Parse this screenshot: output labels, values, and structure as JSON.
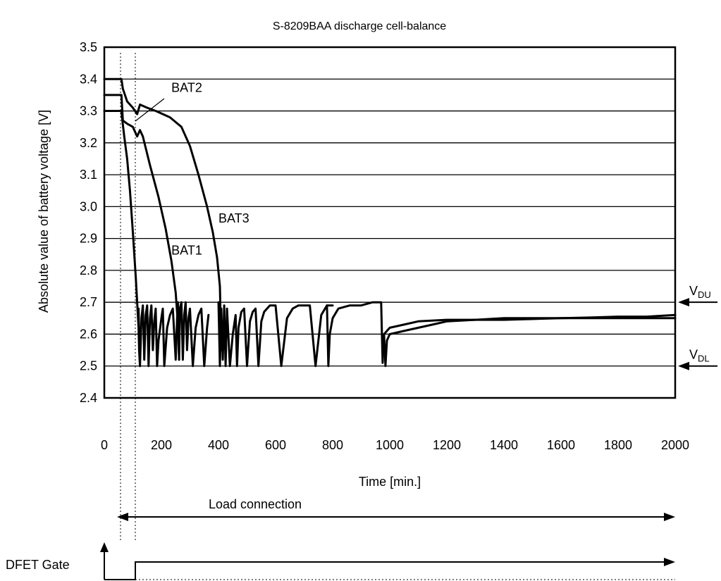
{
  "chart_data": {
    "type": "line",
    "title": "S-8209BAA discharge cell-balance",
    "xlabel": "Time [min.]",
    "ylabel": "Absolute value of battery voltage [V]",
    "xlim": [
      0,
      2000
    ],
    "ylim": [
      2.4,
      3.5
    ],
    "x_ticks": [
      "0",
      "200",
      "400",
      "600",
      "800",
      "1000",
      "1200",
      "1400",
      "1600",
      "1800",
      "2000"
    ],
    "y_ticks": [
      "2.4",
      "2.5",
      "2.6",
      "2.7",
      "2.8",
      "2.9",
      "3.0",
      "3.1",
      "3.2",
      "3.3",
      "3.4",
      "3.5"
    ],
    "grid": "horizontal",
    "series": [
      {
        "name": "BAT1",
        "x": [
          0,
          60,
          62,
          70,
          80,
          90,
          100,
          110,
          115,
          120,
          122,
          125
        ],
        "y": [
          3.3,
          3.3,
          3.28,
          3.22,
          3.15,
          3.05,
          2.92,
          2.78,
          2.7,
          2.62,
          2.55,
          2.5
        ]
      },
      {
        "name": "BAT2",
        "x": [
          0,
          60,
          65,
          80,
          100,
          115,
          125,
          135,
          160,
          190,
          215,
          235,
          250,
          258,
          262
        ],
        "y": [
          3.35,
          3.35,
          3.27,
          3.26,
          3.25,
          3.22,
          3.24,
          3.22,
          3.13,
          3.03,
          2.93,
          2.83,
          2.73,
          2.63,
          2.52
        ]
      },
      {
        "name": "BAT3",
        "x": [
          0,
          60,
          65,
          80,
          100,
          115,
          125,
          150,
          180,
          230,
          270,
          300,
          330,
          360,
          380,
          395,
          405,
          410
        ],
        "y": [
          3.4,
          3.4,
          3.37,
          3.33,
          3.31,
          3.29,
          3.32,
          3.31,
          3.3,
          3.28,
          3.25,
          3.19,
          3.1,
          3.0,
          2.92,
          2.84,
          2.75,
          2.55
        ]
      },
      {
        "name": "",
        "x": [
          120,
          125,
          130,
          135,
          140,
          145,
          150,
          155,
          160,
          165,
          170,
          175,
          180,
          185,
          190,
          200,
          205,
          210,
          220,
          230,
          240,
          250,
          255,
          258,
          262,
          265,
          270,
          275,
          280,
          285,
          290,
          295,
          300,
          310,
          320,
          330,
          340,
          350,
          360,
          365
        ],
        "y": [
          2.68,
          2.5,
          2.65,
          2.69,
          2.52,
          2.66,
          2.69,
          2.5,
          2.65,
          2.69,
          2.55,
          2.64,
          2.68,
          2.5,
          2.58,
          2.65,
          2.68,
          2.5,
          2.62,
          2.66,
          2.68,
          2.52,
          2.65,
          2.7,
          2.52,
          2.68,
          2.7,
          2.52,
          2.66,
          2.7,
          2.55,
          2.65,
          2.68,
          2.5,
          2.62,
          2.66,
          2.68,
          2.5,
          2.62,
          2.66
        ]
      },
      {
        "name": "",
        "x": [
          400,
          405,
          410,
          415,
          420,
          425,
          430,
          440,
          450,
          460,
          465,
          470,
          480,
          490,
          500,
          510,
          520,
          530,
          540,
          550,
          560,
          570,
          580,
          600,
          620,
          640,
          660,
          680,
          700,
          720,
          740,
          760,
          780,
          800
        ],
        "y": [
          2.7,
          2.5,
          2.68,
          2.52,
          2.69,
          2.5,
          2.68,
          2.5,
          2.6,
          2.66,
          2.5,
          2.62,
          2.67,
          2.68,
          2.5,
          2.64,
          2.67,
          2.68,
          2.5,
          2.64,
          2.67,
          2.68,
          2.69,
          2.69,
          2.5,
          2.65,
          2.68,
          2.69,
          2.69,
          2.69,
          2.5,
          2.66,
          2.69,
          2.69
        ]
      },
      {
        "name": "",
        "x": [
          780,
          785,
          790,
          800,
          820,
          860,
          900,
          940,
          970,
          975,
          980,
          990,
          1000,
          1050,
          1100,
          1200,
          1300,
          1400,
          1500,
          1600,
          1700,
          1800,
          1900,
          2000
        ],
        "y": [
          2.69,
          2.5,
          2.6,
          2.65,
          2.68,
          2.69,
          2.69,
          2.7,
          2.7,
          2.51,
          2.6,
          2.61,
          2.62,
          2.63,
          2.64,
          2.645,
          2.645,
          2.65,
          2.65,
          2.65,
          2.652,
          2.655,
          2.655,
          2.66
        ]
      },
      {
        "name": "",
        "x": [
          980,
          985,
          990,
          1000,
          1050,
          1100,
          1150,
          1200,
          1300,
          1400,
          1600,
          1800,
          2000
        ],
        "y": [
          2.6,
          2.5,
          2.58,
          2.6,
          2.61,
          2.62,
          2.63,
          2.64,
          2.645,
          2.645,
          2.65,
          2.65,
          2.65
        ]
      }
    ],
    "annotations": [
      {
        "text": "BAT2",
        "x": 235,
        "y": 3.36
      },
      {
        "text": "BAT3",
        "x": 400,
        "y": 2.95
      },
      {
        "text": "BAT1",
        "x": 235,
        "y": 2.85
      }
    ],
    "right_labels": [
      {
        "text": "V",
        "sub": "DU",
        "y": 2.7
      },
      {
        "text": "V",
        "sub": "DL",
        "y": 2.5
      }
    ],
    "load_connection_label": "Load connection",
    "dfet_gate_label": "DFET Gate"
  }
}
